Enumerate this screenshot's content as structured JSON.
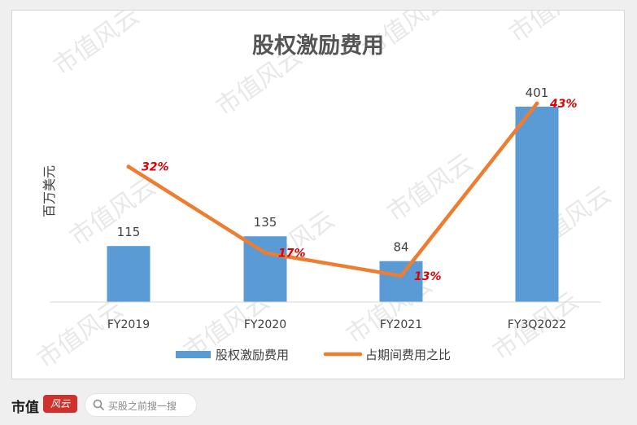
{
  "chart_data": {
    "type": "bar",
    "title": "股权激励费用",
    "ylabel": "百万美元",
    "xlabel": "",
    "categories": [
      "FY2019",
      "FY2020",
      "FY2021",
      "FY3Q2022"
    ],
    "ylim": [
      0,
      401
    ],
    "series": [
      {
        "name": "股权激励费用",
        "type": "bar",
        "values": [
          115,
          135,
          84,
          401
        ],
        "labels": [
          "115",
          "135",
          "84",
          "401"
        ],
        "color": "#5b9bd5"
      },
      {
        "name": "占期间费用之比",
        "type": "line",
        "values": [
          32,
          17,
          13,
          43
        ],
        "labels": [
          "32%",
          "17%",
          "13%",
          "43%"
        ],
        "color": "#ed7d31",
        "label_color": "#e00000"
      }
    ],
    "legend": "bottom",
    "grid": false
  },
  "watermark": {
    "text": "市值风云"
  },
  "footer": {
    "brand": "市值",
    "brand_mark": "风云",
    "search_placeholder": "买股之前搜一搜",
    "search_icon": "search-icon"
  }
}
